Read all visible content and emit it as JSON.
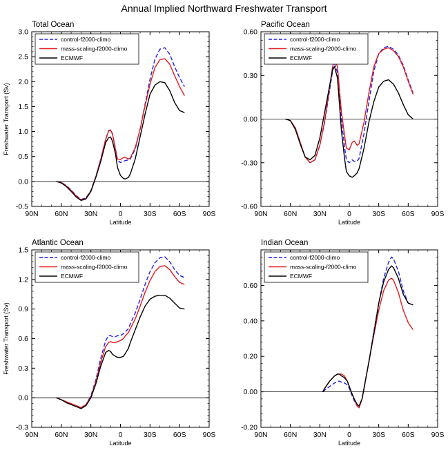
{
  "figure_title": "Annual Implied Northward Freshwater Transport",
  "colors": {
    "control": "#1f1fe6",
    "mass_scaling": "#e31a1c",
    "ecmwf": "#000000",
    "zero_line": "#000000"
  },
  "chart_data": [
    {
      "type": "line",
      "title": "Total Ocean",
      "xlabel": "Latitude",
      "ylabel": "Freshwater Transport (Sv)",
      "xlim": [
        -90,
        90
      ],
      "ylim": [
        -0.5,
        3.0
      ],
      "yticks": [
        -0.5,
        0.0,
        0.5,
        1.0,
        1.5,
        2.0,
        2.5,
        3.0
      ],
      "ytick_labels": [
        "-0.5",
        "0.0",
        "0.5",
        "1.0",
        "1.5",
        "2.0",
        "2.5",
        "3.0"
      ],
      "xticks": [
        -90,
        -60,
        -30,
        0,
        30,
        60,
        90
      ],
      "xtick_labels": [
        "90N",
        "60N",
        "30N",
        "0",
        "30S",
        "60S",
        "90S"
      ],
      "legend": [
        "control-f2000-climo",
        "mass-scaling-f2000-climo",
        "ECMWF"
      ],
      "legend_position": "top-left",
      "series": [
        {
          "name": "control-f2000-climo",
          "style": "dashed",
          "color_key": "control",
          "x": [
            -65,
            -60,
            -55,
            -50,
            -45,
            -40,
            -35,
            -30,
            -25,
            -20,
            -15,
            -12,
            -10,
            -8,
            -5,
            -3,
            0,
            3,
            5,
            8,
            10,
            15,
            20,
            25,
            30,
            35,
            40,
            45,
            50,
            55,
            60,
            65
          ],
          "y": [
            0.0,
            -0.02,
            -0.08,
            -0.17,
            -0.28,
            -0.36,
            -0.33,
            -0.18,
            0.1,
            0.45,
            0.85,
            1.02,
            1.04,
            0.95,
            0.65,
            0.42,
            0.38,
            0.4,
            0.42,
            0.43,
            0.45,
            0.65,
            1.05,
            1.55,
            2.05,
            2.45,
            2.65,
            2.68,
            2.55,
            2.3,
            2.08,
            1.9
          ]
        },
        {
          "name": "mass-scaling-f2000-climo",
          "style": "solid",
          "color_key": "mass_scaling",
          "x": [
            -65,
            -60,
            -55,
            -50,
            -45,
            -40,
            -35,
            -30,
            -25,
            -20,
            -15,
            -12,
            -10,
            -8,
            -5,
            -3,
            0,
            3,
            5,
            8,
            10,
            15,
            20,
            25,
            30,
            35,
            40,
            45,
            50,
            55,
            60,
            65
          ],
          "y": [
            0.0,
            -0.02,
            -0.09,
            -0.18,
            -0.29,
            -0.37,
            -0.34,
            -0.19,
            0.09,
            0.44,
            0.84,
            1.01,
            1.03,
            0.94,
            0.63,
            0.45,
            0.44,
            0.48,
            0.48,
            0.45,
            0.47,
            0.68,
            1.05,
            1.52,
            1.95,
            2.28,
            2.44,
            2.46,
            2.35,
            2.12,
            1.9,
            1.72
          ]
        },
        {
          "name": "ECMWF",
          "style": "solid",
          "color_key": "ecmwf",
          "x": [
            -65,
            -60,
            -55,
            -50,
            -45,
            -40,
            -35,
            -30,
            -25,
            -20,
            -15,
            -12,
            -10,
            -8,
            -5,
            -3,
            0,
            3,
            5,
            8,
            10,
            15,
            20,
            25,
            30,
            35,
            40,
            45,
            50,
            55,
            60,
            65
          ],
          "y": [
            0.0,
            -0.03,
            -0.1,
            -0.2,
            -0.31,
            -0.38,
            -0.35,
            -0.2,
            0.08,
            0.4,
            0.78,
            0.88,
            0.89,
            0.8,
            0.55,
            0.28,
            0.12,
            0.06,
            0.05,
            0.08,
            0.15,
            0.45,
            0.9,
            1.35,
            1.75,
            1.93,
            2.0,
            1.98,
            1.82,
            1.58,
            1.42,
            1.38
          ]
        }
      ]
    },
    {
      "type": "line",
      "title": "Pacific Ocean",
      "xlabel": "Latitude",
      "ylabel": "",
      "xlim": [
        -90,
        90
      ],
      "ylim": [
        -0.6,
        0.6
      ],
      "yticks": [
        -0.6,
        -0.3,
        0.0,
        0.3,
        0.6
      ],
      "ytick_labels": [
        "-0.60",
        "-0.30",
        "0.00",
        "0.30",
        "0.60"
      ],
      "xticks": [
        -90,
        -60,
        -30,
        0,
        30,
        60,
        90
      ],
      "xtick_labels": [
        "90N",
        "60N",
        "30N",
        "0",
        "30S",
        "60S",
        "90S"
      ],
      "legend": [
        "control-f2000-climo",
        "mass-scaling-f2000-climo",
        "ECMWF"
      ],
      "legend_position": "top-left",
      "series": [
        {
          "name": "control-f2000-climo",
          "style": "dashed",
          "color_key": "control",
          "x": [
            -65,
            -60,
            -55,
            -50,
            -45,
            -40,
            -35,
            -30,
            -25,
            -20,
            -17,
            -15,
            -12,
            -10,
            -8,
            -5,
            -3,
            0,
            3,
            5,
            8,
            10,
            15,
            20,
            25,
            30,
            35,
            40,
            45,
            50,
            55,
            60,
            65
          ],
          "y": [
            0.0,
            -0.01,
            -0.06,
            -0.16,
            -0.26,
            -0.3,
            -0.28,
            -0.18,
            -0.02,
            0.2,
            0.33,
            0.38,
            0.32,
            0.15,
            0.0,
            -0.18,
            -0.28,
            -0.3,
            -0.28,
            -0.29,
            -0.29,
            -0.27,
            -0.1,
            0.12,
            0.33,
            0.45,
            0.49,
            0.5,
            0.48,
            0.44,
            0.37,
            0.27,
            0.18
          ]
        },
        {
          "name": "mass-scaling-f2000-climo",
          "style": "solid",
          "color_key": "mass_scaling",
          "x": [
            -65,
            -60,
            -55,
            -50,
            -45,
            -40,
            -35,
            -30,
            -25,
            -20,
            -17,
            -15,
            -12,
            -10,
            -8,
            -5,
            -3,
            0,
            3,
            5,
            8,
            10,
            15,
            20,
            25,
            30,
            35,
            40,
            45,
            50,
            55,
            60,
            65
          ],
          "y": [
            0.0,
            -0.01,
            -0.06,
            -0.16,
            -0.26,
            -0.3,
            -0.28,
            -0.18,
            -0.01,
            0.22,
            0.36,
            0.41,
            0.36,
            0.2,
            0.05,
            -0.1,
            -0.2,
            -0.21,
            -0.16,
            -0.15,
            -0.18,
            -0.17,
            -0.02,
            0.18,
            0.36,
            0.45,
            0.48,
            0.49,
            0.47,
            0.43,
            0.36,
            0.26,
            0.17
          ]
        },
        {
          "name": "ECMWF",
          "style": "solid",
          "color_key": "ecmwf",
          "x": [
            -65,
            -60,
            -55,
            -50,
            -45,
            -40,
            -35,
            -30,
            -25,
            -20,
            -17,
            -15,
            -12,
            -10,
            -8,
            -5,
            -3,
            0,
            3,
            5,
            8,
            10,
            15,
            20,
            25,
            30,
            35,
            40,
            45,
            50,
            55,
            60,
            65
          ],
          "y": [
            0.0,
            -0.01,
            -0.07,
            -0.17,
            -0.26,
            -0.28,
            -0.25,
            -0.13,
            0.05,
            0.23,
            0.34,
            0.36,
            0.28,
            0.1,
            -0.08,
            -0.26,
            -0.36,
            -0.39,
            -0.4,
            -0.39,
            -0.37,
            -0.34,
            -0.2,
            -0.02,
            0.12,
            0.22,
            0.26,
            0.27,
            0.24,
            0.18,
            0.1,
            0.03,
            0.0
          ]
        }
      ]
    },
    {
      "type": "line",
      "title": "Atlantic Ocean",
      "xlabel": "Latitude",
      "ylabel": "Freshwater Transport (Sv)",
      "xlim": [
        -90,
        90
      ],
      "ylim": [
        -0.3,
        1.5
      ],
      "yticks": [
        -0.3,
        0.0,
        0.3,
        0.6,
        0.9,
        1.2,
        1.5
      ],
      "ytick_labels": [
        "-0.3",
        "0.0",
        "0.3",
        "0.6",
        "0.9",
        "1.2",
        "1.5"
      ],
      "xticks": [
        -90,
        -60,
        -30,
        0,
        30,
        60,
        90
      ],
      "xtick_labels": [
        "90N",
        "60N",
        "30N",
        "0",
        "30S",
        "60S",
        "90S"
      ],
      "legend": [
        "control-f2000-climo",
        "mass-scaling-f2000-climo",
        "ECMWF"
      ],
      "legend_position": "top-left",
      "series": [
        {
          "name": "control-f2000-climo",
          "style": "dashed",
          "color_key": "control",
          "x": [
            -65,
            -60,
            -55,
            -50,
            -45,
            -40,
            -35,
            -30,
            -25,
            -20,
            -15,
            -12,
            -10,
            -8,
            -5,
            -3,
            0,
            3,
            5,
            8,
            10,
            15,
            20,
            25,
            30,
            35,
            40,
            45,
            50,
            55,
            60,
            65
          ],
          "y": [
            0.0,
            -0.02,
            -0.04,
            -0.06,
            -0.08,
            -0.1,
            -0.07,
            0.02,
            0.18,
            0.4,
            0.58,
            0.63,
            0.63,
            0.62,
            0.62,
            0.63,
            0.63,
            0.65,
            0.67,
            0.7,
            0.75,
            0.86,
            1.0,
            1.15,
            1.28,
            1.37,
            1.42,
            1.43,
            1.38,
            1.3,
            1.24,
            1.22
          ]
        },
        {
          "name": "mass-scaling-f2000-climo",
          "style": "solid",
          "color_key": "mass_scaling",
          "x": [
            -65,
            -60,
            -55,
            -50,
            -45,
            -40,
            -35,
            -30,
            -25,
            -20,
            -15,
            -12,
            -10,
            -8,
            -5,
            -3,
            0,
            3,
            5,
            8,
            10,
            15,
            20,
            25,
            30,
            35,
            40,
            45,
            50,
            55,
            60,
            65
          ],
          "y": [
            0.0,
            -0.02,
            -0.04,
            -0.06,
            -0.08,
            -0.1,
            -0.07,
            0.01,
            0.16,
            0.36,
            0.52,
            0.56,
            0.57,
            0.56,
            0.56,
            0.57,
            0.58,
            0.6,
            0.63,
            0.66,
            0.7,
            0.8,
            0.93,
            1.07,
            1.19,
            1.28,
            1.33,
            1.34,
            1.3,
            1.23,
            1.17,
            1.15
          ]
        },
        {
          "name": "ECMWF",
          "style": "solid",
          "color_key": "ecmwf",
          "x": [
            -65,
            -60,
            -55,
            -50,
            -45,
            -40,
            -35,
            -30,
            -25,
            -20,
            -15,
            -12,
            -10,
            -8,
            -5,
            -3,
            0,
            3,
            5,
            8,
            10,
            15,
            20,
            25,
            30,
            35,
            40,
            45,
            50,
            55,
            60,
            65
          ],
          "y": [
            0.0,
            -0.02,
            -0.05,
            -0.07,
            -0.09,
            -0.11,
            -0.08,
            0.0,
            0.14,
            0.32,
            0.46,
            0.48,
            0.47,
            0.44,
            0.42,
            0.41,
            0.41,
            0.42,
            0.45,
            0.5,
            0.56,
            0.69,
            0.82,
            0.93,
            1.0,
            1.03,
            1.04,
            1.04,
            1.01,
            0.96,
            0.91,
            0.9
          ]
        }
      ]
    },
    {
      "type": "line",
      "title": "Indian Ocean",
      "xlabel": "Latitude",
      "ylabel": "",
      "xlim": [
        -90,
        90
      ],
      "ylim": [
        -0.2,
        0.8
      ],
      "yticks": [
        -0.2,
        0.0,
        0.2,
        0.4,
        0.6
      ],
      "ytick_labels": [
        "-0.20",
        "0.00",
        "0.20",
        "0.40",
        "0.60"
      ],
      "xticks": [
        -90,
        -60,
        -30,
        0,
        30,
        60,
        90
      ],
      "xtick_labels": [
        "90N",
        "60N",
        "30N",
        "0",
        "30S",
        "60S",
        "90S"
      ],
      "legend": [
        "control-f2000-climo",
        "mass-scaling-f2000-climo",
        "ECMWF"
      ],
      "legend_position": "top-left",
      "series": [
        {
          "name": "control-f2000-climo",
          "style": "dashed",
          "color_key": "control",
          "x": [
            -27,
            -25,
            -20,
            -15,
            -12,
            -10,
            -8,
            -5,
            -2,
            0,
            2,
            5,
            8,
            10,
            13,
            15,
            20,
            25,
            30,
            35,
            40,
            43,
            45,
            50,
            55,
            60,
            65
          ],
          "y": [
            0.0,
            0.01,
            0.03,
            0.05,
            0.06,
            0.06,
            0.055,
            0.05,
            0.04,
            0.02,
            -0.01,
            -0.05,
            -0.08,
            -0.08,
            -0.04,
            0.02,
            0.17,
            0.34,
            0.5,
            0.64,
            0.73,
            0.76,
            0.75,
            0.68,
            0.57,
            0.5,
            0.49
          ]
        },
        {
          "name": "mass-scaling-f2000-climo",
          "style": "solid",
          "color_key": "mass_scaling",
          "x": [
            -27,
            -25,
            -20,
            -15,
            -12,
            -10,
            -8,
            -5,
            -2,
            0,
            2,
            5,
            8,
            10,
            13,
            15,
            20,
            25,
            30,
            35,
            40,
            43,
            45,
            50,
            55,
            60,
            65
          ],
          "y": [
            0.0,
            0.02,
            0.06,
            0.09,
            0.1,
            0.1,
            0.1,
            0.09,
            0.06,
            0.03,
            0.0,
            -0.04,
            -0.08,
            -0.09,
            -0.04,
            0.02,
            0.17,
            0.32,
            0.46,
            0.57,
            0.63,
            0.64,
            0.63,
            0.56,
            0.46,
            0.39,
            0.35
          ]
        },
        {
          "name": "ECMWF",
          "style": "solid",
          "color_key": "ecmwf",
          "x": [
            -27,
            -25,
            -20,
            -15,
            -12,
            -10,
            -8,
            -5,
            -2,
            0,
            2,
            5,
            8,
            10,
            13,
            15,
            20,
            25,
            30,
            35,
            40,
            43,
            45,
            50,
            55,
            60,
            65
          ],
          "y": [
            0.0,
            0.02,
            0.06,
            0.09,
            0.1,
            0.1,
            0.09,
            0.08,
            0.06,
            0.03,
            0.0,
            -0.04,
            -0.07,
            -0.08,
            -0.04,
            0.02,
            0.17,
            0.33,
            0.5,
            0.62,
            0.69,
            0.71,
            0.7,
            0.64,
            0.55,
            0.5,
            0.49
          ]
        }
      ]
    }
  ]
}
